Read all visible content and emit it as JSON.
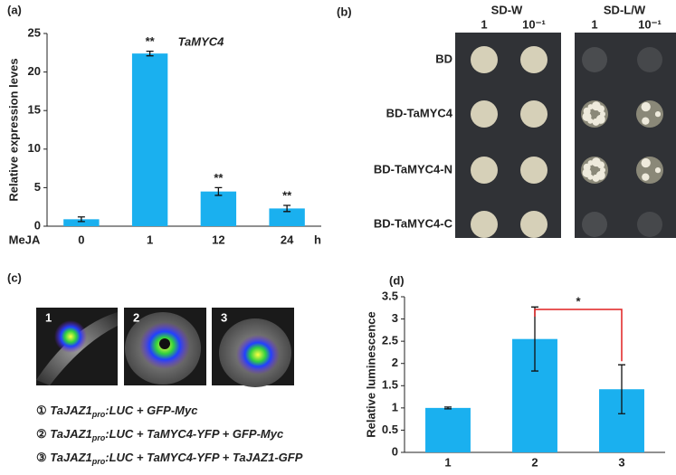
{
  "chart_data": [
    {
      "type": "bar",
      "panel": "(a)",
      "title": "TaMYC4",
      "y_label": "Relative expression leves",
      "x_prefix": "MeJA",
      "x_unit": "h",
      "categories": [
        "0",
        "1",
        "12",
        "24"
      ],
      "values": [
        0.9,
        22.4,
        4.5,
        2.3
      ],
      "errors": [
        0.3,
        0.3,
        0.5,
        0.4
      ],
      "significance": [
        null,
        "**",
        "**",
        "**"
      ],
      "color": "#1ab0ef",
      "ylim": [
        0,
        25
      ],
      "yticks": [
        0,
        5,
        10,
        15,
        20,
        25
      ]
    },
    {
      "type": "bar",
      "panel": "(d)",
      "y_label": "Relative luminescence",
      "categories": [
        "1",
        "2",
        "3"
      ],
      "values": [
        1.0,
        2.55,
        1.42
      ],
      "errors": [
        0.02,
        0.72,
        0.55
      ],
      "comparison": {
        "text": "*",
        "between": [
          "2",
          "3"
        ]
      },
      "color": "#1ab0ef",
      "ylim": [
        0,
        3.5
      ],
      "yticks": [
        0,
        0.5,
        1,
        1.5,
        2,
        2.5,
        3,
        3.5
      ]
    }
  ],
  "yeast_assay": {
    "panel": "(b)",
    "columns": [
      {
        "title": "SD-W",
        "dilutions": [
          "1",
          "10⁻¹"
        ]
      },
      {
        "title": "SD-L/W",
        "dilutions": [
          "1",
          "10⁻¹"
        ]
      }
    ],
    "rows": [
      "BD",
      "BD-TaMYC4",
      "BD-TaMYC4-N",
      "BD-TaMYC4-C"
    ]
  },
  "imaging": {
    "panel": "(c)",
    "image_labels": [
      "1",
      "2",
      "3"
    ],
    "legend": [
      {
        "marker": "①",
        "gene": "TaJAZ1",
        "sub": "pro",
        "rest": ":LUC + GFP-Myc"
      },
      {
        "marker": "②",
        "gene": "TaJAZ1",
        "sub": "pro",
        "rest": ":LUC + TaMYC4-YFP + GFP-Myc"
      },
      {
        "marker": "③",
        "gene": "TaJAZ1",
        "sub": "pro",
        "rest": ":LUC + TaMYC4-YFP + TaJAZ1-GFP"
      }
    ]
  }
}
